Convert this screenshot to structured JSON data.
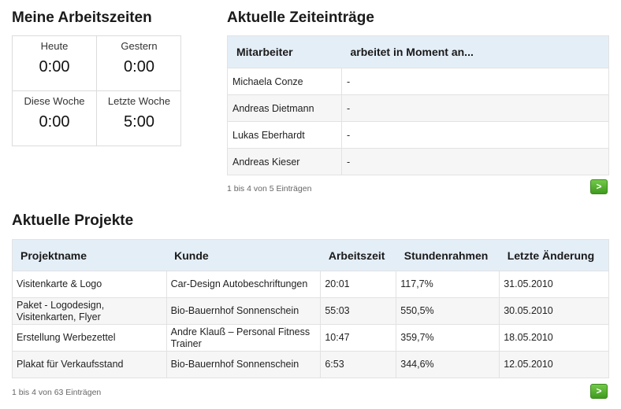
{
  "worktime": {
    "title": "Meine Arbeitszeiten",
    "cells": [
      {
        "label": "Heute",
        "value": "0:00"
      },
      {
        "label": "Gestern",
        "value": "0:00"
      },
      {
        "label": "Diese Woche",
        "value": "0:00"
      },
      {
        "label": "Letzte Woche",
        "value": "5:00"
      }
    ]
  },
  "time_entries": {
    "title": "Aktuelle Zeiteinträge",
    "headers": [
      "Mitarbeiter",
      "arbeitet in Moment an..."
    ],
    "rows": [
      [
        "Michaela Conze",
        "-"
      ],
      [
        "Andreas Dietmann",
        "-"
      ],
      [
        "Lukas Eberhardt",
        "-"
      ],
      [
        "Andreas Kieser",
        "-"
      ]
    ],
    "paging": "1 bis 4 von 5 Einträgen",
    "next_label": ">"
  },
  "projects": {
    "title": "Aktuelle Projekte",
    "headers": [
      "Projektname",
      "Kunde",
      "Arbeitszeit",
      "Stundenrahmen",
      "Letzte Änderung"
    ],
    "rows": [
      [
        "Visitenkarte & Logo",
        "Car-Design Autobeschriftungen",
        "20:01",
        "117,7%",
        "31.05.2010"
      ],
      [
        "Paket - Logodesign, Visitenkarten, Flyer",
        "Bio-Bauernhof Sonnenschein",
        "55:03",
        "550,5%",
        "30.05.2010"
      ],
      [
        "Erstellung Werbezettel",
        "Andre Klauß – Personal Fitness Trainer",
        "10:47",
        "359,7%",
        "18.05.2010"
      ],
      [
        "Plakat für Verkaufsstand",
        "Bio-Bauernhof Sonnenschein",
        "6:53",
        "344,6%",
        "12.05.2010"
      ]
    ],
    "paging": "1 bis 4 von 63 Einträgen",
    "next_label": ">"
  }
}
